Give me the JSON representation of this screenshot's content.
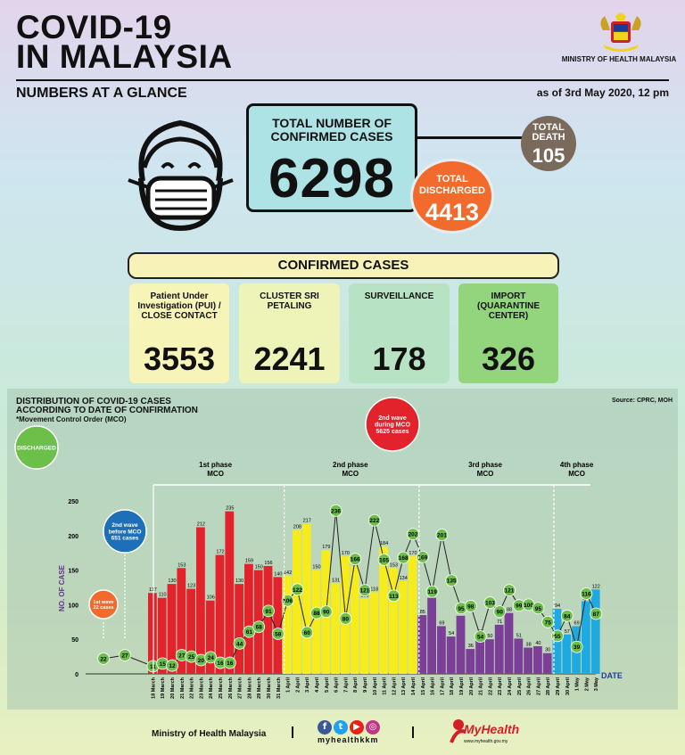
{
  "header": {
    "title_line1": "COVID-19",
    "title_line2": "IN MALAYSIA",
    "subtitle": "NUMBERS AT A GLANCE",
    "as_of": "as of 3rd May 2020, 12 pm",
    "ministry": "MINISTRY OF HEALTH MALAYSIA"
  },
  "summary": {
    "total_label": "TOTAL NUMBER OF CONFIRMED CASES",
    "total_value": "6298",
    "death_label": "TOTAL DEATH",
    "death_value": "105",
    "discharged_label": "TOTAL DISCHARGED",
    "discharged_value": "4413"
  },
  "confirmed": {
    "header": "CONFIRMED CASES",
    "items": [
      {
        "label": "Patient Under Investigation (PUI) / CLOSE CONTACT",
        "value": "3553",
        "color": "#f7f4b8"
      },
      {
        "label": "CLUSTER SRI PETALING",
        "value": "2241",
        "color": "#eef3b8"
      },
      {
        "label": "SURVEILLANCE",
        "value": "178",
        "color": "#b7e3c4"
      },
      {
        "label": "IMPORT (QUARANTINE CENTER)",
        "value": "326",
        "color": "#92d57d"
      }
    ]
  },
  "distribution": {
    "title_line1": "DISTRIBUTION OF COVID-19 CASES",
    "title_line2": "ACCORDING TO DATE OF CONFIRMATION",
    "note": "*Movement Control Order (MCO)",
    "source": "Source: CPRC, MOH"
  },
  "chart_data": {
    "type": "bar",
    "ylabel": "NO. OF CASE",
    "xlabel": "DATE",
    "ylim": [
      0,
      250
    ],
    "yticks": [
      0,
      50,
      100,
      150,
      200,
      250
    ],
    "legend": "DISCHARGED",
    "annotations": {
      "first_wave": "1st wave 22 cases",
      "second_wave_before": "2nd wave before MCO 651 cases",
      "second_wave_during": "2nd wave during MCO 5625 cases",
      "phases": [
        "1st phase MCO",
        "2nd phase MCO",
        "3rd phase MCO",
        "4th phase MCO"
      ]
    },
    "early_discharged": [
      22,
      27
    ],
    "categories": [
      "18 March",
      "19 March",
      "20 March",
      "21 March",
      "22 March",
      "23 March",
      "24 March",
      "25 March",
      "26 March",
      "27 March",
      "28 March",
      "29 March",
      "30 March",
      "31 March",
      "1 April",
      "2 April",
      "3 April",
      "4 April",
      "5 April",
      "6 April",
      "7 April",
      "8 April",
      "9 April",
      "10 April",
      "11 April",
      "12 April",
      "13 April",
      "14 April",
      "15 April",
      "16 April",
      "17 April",
      "18 April",
      "19 April",
      "20 April",
      "21 April",
      "22 April",
      "23 April",
      "24 April",
      "25 April",
      "26 April",
      "27 April",
      "28 April",
      "29 April",
      "30 April",
      "1 May",
      "2 May",
      "3 May"
    ],
    "phase_of_day": [
      1,
      1,
      1,
      1,
      1,
      1,
      1,
      1,
      1,
      1,
      1,
      1,
      1,
      1,
      2,
      2,
      2,
      2,
      2,
      2,
      2,
      2,
      2,
      2,
      2,
      2,
      2,
      2,
      3,
      3,
      3,
      3,
      3,
      3,
      3,
      3,
      3,
      3,
      3,
      3,
      3,
      3,
      4,
      4,
      4,
      4,
      4
    ],
    "series": [
      {
        "name": "Confirmed cases",
        "values": [
          117,
          110,
          130,
          153,
          123,
          212,
          106,
          172,
          235,
          130,
          159,
          150,
          156,
          140,
          142,
          208,
          217,
          150,
          179,
          131,
          170,
          156,
          109,
          118,
          184,
          153,
          134,
          170,
          85,
          110,
          69,
          54,
          84,
          36,
          57,
          50,
          71,
          88,
          51,
          38,
          40,
          30,
          94,
          57,
          69,
          105,
          122
        ]
      },
      {
        "name": "DISCHARGED",
        "values": [
          11,
          15,
          12,
          27,
          25,
          20,
          24,
          16,
          16,
          44,
          61,
          68,
          91,
          58,
          106,
          122,
          60,
          88,
          90,
          236,
          80,
          166,
          121,
          222,
          165,
          113,
          168,
          202,
          169,
          119,
          201,
          135,
          95,
          98,
          54,
          103,
          90,
          121,
          99,
          100,
          95,
          75,
          55,
          84,
          39,
          116,
          87
        ]
      }
    ]
  }
}
